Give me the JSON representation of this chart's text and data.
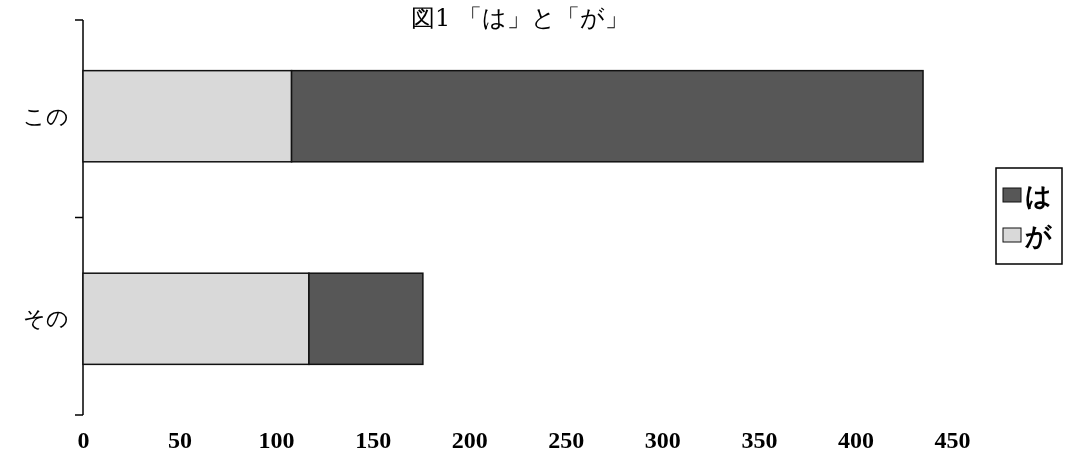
{
  "chart_data": {
    "type": "bar",
    "orientation": "horizontal",
    "stacked": true,
    "title": "図1 「は」と「が」",
    "categories": [
      "この",
      "その"
    ],
    "series": [
      {
        "name": "が",
        "color": "#d9d9d9",
        "values": [
          108,
          117
        ]
      },
      {
        "name": "は",
        "color": "#575757",
        "values": [
          327,
          59
        ]
      }
    ],
    "xlim": [
      0,
      450
    ],
    "xticks": [
      0,
      50,
      100,
      150,
      200,
      250,
      300,
      350,
      400,
      450
    ],
    "grid": false,
    "legend": "right"
  }
}
